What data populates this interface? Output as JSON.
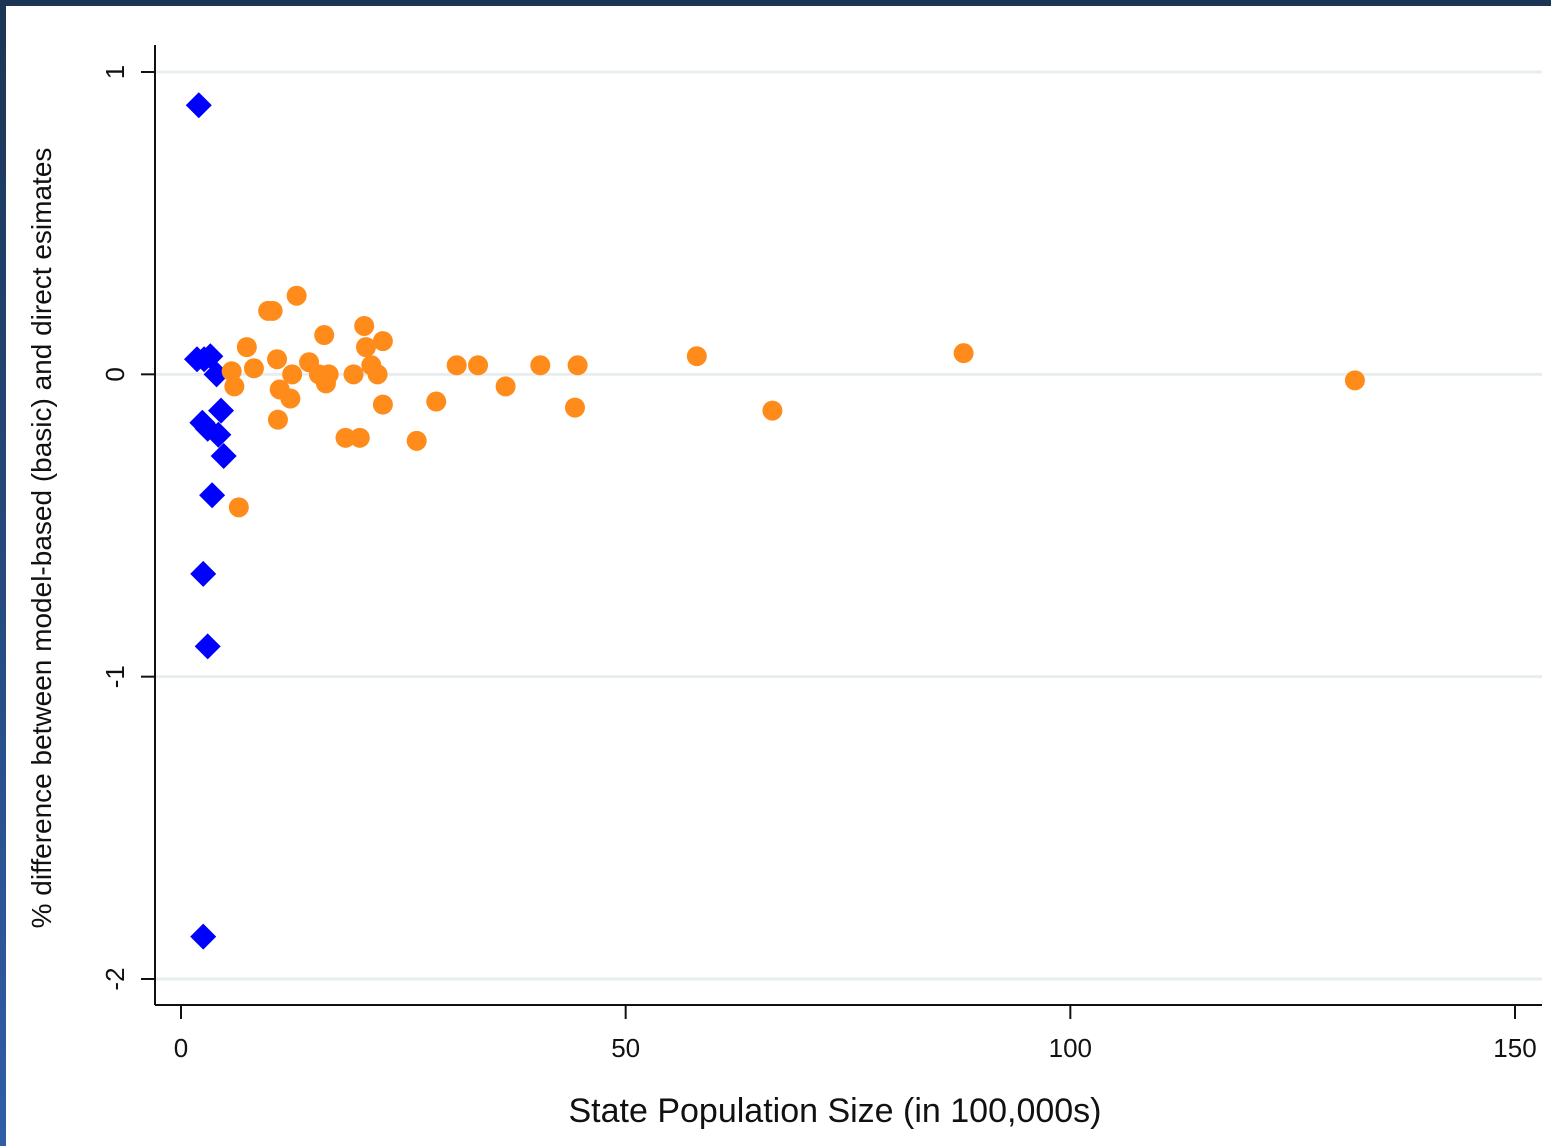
{
  "colors": {
    "frame_border": "#1c3554",
    "grid": "#e8eef0",
    "axis": "#111111",
    "small_states": "#0000ff",
    "large_states": "#ff8c1a"
  },
  "chart_data": {
    "type": "scatter",
    "title": "",
    "xlabel": "State Population Size (in 100,000s)",
    "ylabel": "% difference between model-based (basic) and direct esimates",
    "xlim": [
      -3,
      152
    ],
    "ylim": [
      -2.1,
      1.1
    ],
    "xticks": [
      0,
      50,
      100,
      150
    ],
    "xtick_labels": [
      "0",
      "50",
      "100",
      "150"
    ],
    "yticks": [
      -2,
      -1,
      0,
      1
    ],
    "ytick_labels": [
      "-2",
      "-1",
      "0",
      "1"
    ],
    "grid": "horizontal",
    "legend": "none",
    "series": [
      {
        "marker": "diamond",
        "color": "#0000ff",
        "points": [
          [
            2.0,
            0.89
          ],
          [
            1.8,
            0.05
          ],
          [
            2.6,
            0.05
          ],
          [
            3.3,
            0.06
          ],
          [
            4.0,
            0.0
          ],
          [
            2.4,
            -0.16
          ],
          [
            3.0,
            -0.18
          ],
          [
            4.5,
            -0.12
          ],
          [
            4.2,
            -0.2
          ],
          [
            4.8,
            -0.27
          ],
          [
            3.5,
            -0.4
          ],
          [
            2.5,
            -0.66
          ],
          [
            3.0,
            -0.9
          ],
          [
            2.5,
            -1.86
          ]
        ]
      },
      {
        "marker": "circle",
        "color": "#ff8c1a",
        "points": [
          [
            5.7,
            0.01
          ],
          [
            6.0,
            -0.04
          ],
          [
            6.5,
            -0.44
          ],
          [
            7.4,
            0.09
          ],
          [
            8.2,
            0.02
          ],
          [
            9.8,
            0.21
          ],
          [
            10.3,
            0.21
          ],
          [
            10.8,
            0.05
          ],
          [
            11.1,
            -0.05
          ],
          [
            10.9,
            -0.15
          ],
          [
            12.5,
            0.0
          ],
          [
            12.3,
            -0.08
          ],
          [
            13.0,
            0.26
          ],
          [
            14.4,
            0.04
          ],
          [
            15.5,
            0.0
          ],
          [
            16.1,
            0.13
          ],
          [
            16.3,
            -0.03
          ],
          [
            16.6,
            0.0
          ],
          [
            18.5,
            -0.21
          ],
          [
            19.4,
            0.0
          ],
          [
            20.1,
            -0.21
          ],
          [
            20.6,
            0.16
          ],
          [
            20.8,
            0.09
          ],
          [
            21.4,
            0.03
          ],
          [
            22.1,
            0.0
          ],
          [
            22.7,
            0.11
          ],
          [
            22.7,
            -0.1
          ],
          [
            26.5,
            -0.22
          ],
          [
            28.7,
            -0.09
          ],
          [
            31.0,
            0.03
          ],
          [
            33.4,
            0.03
          ],
          [
            36.5,
            -0.04
          ],
          [
            40.4,
            0.03
          ],
          [
            44.3,
            -0.11
          ],
          [
            44.6,
            0.03
          ],
          [
            58.0,
            0.06
          ],
          [
            66.5,
            -0.12
          ],
          [
            88.0,
            0.07
          ],
          [
            132.0,
            -0.02
          ]
        ]
      }
    ]
  }
}
